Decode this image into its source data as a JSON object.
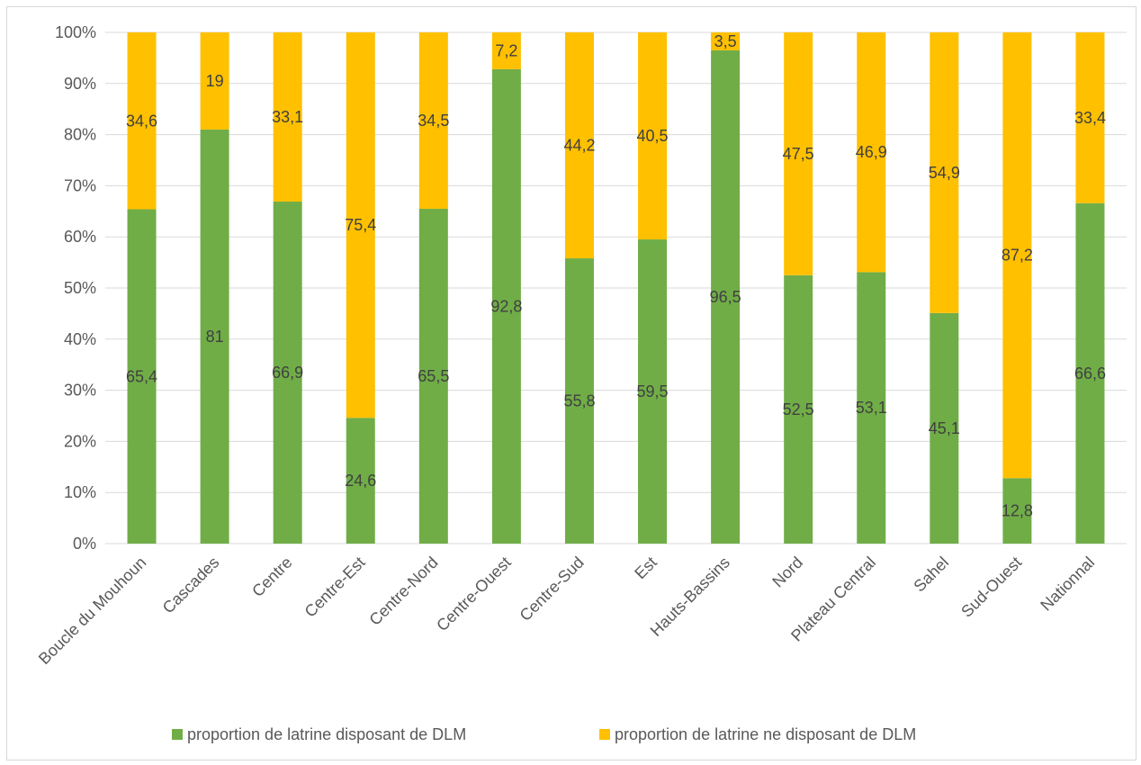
{
  "chart_data": {
    "type": "bar",
    "stacked": true,
    "percent_stacked": true,
    "categories": [
      "Boucle du Mouhoun",
      "Cascades",
      "Centre",
      "Centre-Est",
      "Centre-Nord",
      "Centre-Ouest",
      "Centre-Sud",
      "Est",
      "Hauts-Bassins",
      "Nord",
      "Plateau Central",
      "Sahel",
      "Sud-Ouest",
      "Nationnal"
    ],
    "series": [
      {
        "name": "proportion de latrine disposant de DLM",
        "color": "#70ad47",
        "values": [
          65.4,
          81,
          66.9,
          24.6,
          65.5,
          92.8,
          55.8,
          59.5,
          96.5,
          52.5,
          53.1,
          45.1,
          12.8,
          66.6
        ],
        "labels": [
          "65,4",
          "81",
          "66,9",
          "24,6",
          "65,5",
          "92,8",
          "55,8",
          "59,5",
          "96,5",
          "52,5",
          "53,1",
          "45,1",
          "12,8",
          "66,6"
        ]
      },
      {
        "name": "proportion de latrine ne disposant de DLM",
        "color": "#ffc000",
        "values": [
          34.6,
          19,
          33.1,
          75.4,
          34.5,
          7.2,
          44.2,
          40.5,
          3.5,
          47.5,
          46.9,
          54.9,
          87.2,
          33.4
        ],
        "labels": [
          "34,6",
          "19",
          "33,1",
          "75,4",
          "34,5",
          "7,2",
          "44,2",
          "40,5",
          "3,5",
          "47,5",
          "46,9",
          "54,9",
          "87,2",
          "33,4"
        ]
      }
    ],
    "y_ticks": [
      "0%",
      "10%",
      "20%",
      "30%",
      "40%",
      "50%",
      "60%",
      "70%",
      "80%",
      "90%",
      "100%"
    ],
    "ylim": [
      0,
      100
    ],
    "grid": true,
    "legend_position": "bottom",
    "title": "",
    "xlabel": "",
    "ylabel": ""
  }
}
